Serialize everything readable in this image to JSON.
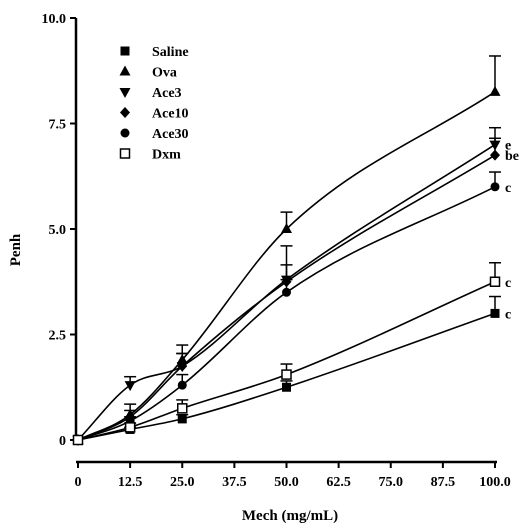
{
  "chart_data": {
    "type": "line",
    "xlabel": "Mech (mg/mL)",
    "ylabel": "Penh",
    "x": [
      0,
      12.5,
      25,
      50,
      100
    ],
    "x_tick_labels": [
      "0",
      "12.5",
      "25.0",
      "37.5",
      "50.0",
      "62.5",
      "75.0",
      "87.5",
      "100.0"
    ],
    "x_ticks": [
      0,
      12.5,
      25,
      37.5,
      50,
      62.5,
      75,
      87.5,
      100
    ],
    "y_tick_labels": [
      "0",
      "2.5",
      "5.0",
      "7.5",
      "10.0"
    ],
    "y_ticks": [
      0,
      2.5,
      5,
      7.5,
      10
    ],
    "xlim": [
      0,
      100
    ],
    "ylim": [
      0,
      10
    ],
    "grid": false,
    "legend_placement": "top-left",
    "series": [
      {
        "name": "Saline",
        "marker": "square-filled",
        "values": [
          0,
          0.25,
          0.5,
          1.25,
          3.0
        ],
        "errors": [
          0,
          0.05,
          0.1,
          0.15,
          0.4
        ],
        "sig": "c"
      },
      {
        "name": "Ova",
        "marker": "triangle-up",
        "values": [
          0,
          0.6,
          1.9,
          5.0,
          8.25
        ],
        "errors": [
          0,
          0.25,
          0.35,
          0.4,
          0.85
        ],
        "sig": ""
      },
      {
        "name": "Ace3",
        "marker": "triangle-down",
        "values": [
          0,
          1.3,
          1.75,
          3.8,
          7.0
        ],
        "errors": [
          0,
          0.2,
          0.3,
          0.8,
          0.4
        ],
        "sig": "e"
      },
      {
        "name": "Ace10",
        "marker": "diamond",
        "values": [
          0,
          0.55,
          1.75,
          3.75,
          6.75
        ],
        "errors": [
          0,
          0.15,
          0.3,
          0.4,
          0.4
        ],
        "sig": "be"
      },
      {
        "name": "Ace30",
        "marker": "circle",
        "values": [
          0,
          0.45,
          1.3,
          3.5,
          6.0
        ],
        "errors": [
          0,
          0.1,
          0.25,
          0.3,
          0.35
        ],
        "sig": "c"
      },
      {
        "name": "Dxm",
        "marker": "square-open",
        "values": [
          0,
          0.3,
          0.75,
          1.55,
          3.75
        ],
        "errors": [
          0,
          0.1,
          0.2,
          0.25,
          0.45
        ],
        "sig": "c"
      }
    ],
    "colors": {
      "ink": "#000000",
      "background": "#ffffff"
    }
  }
}
